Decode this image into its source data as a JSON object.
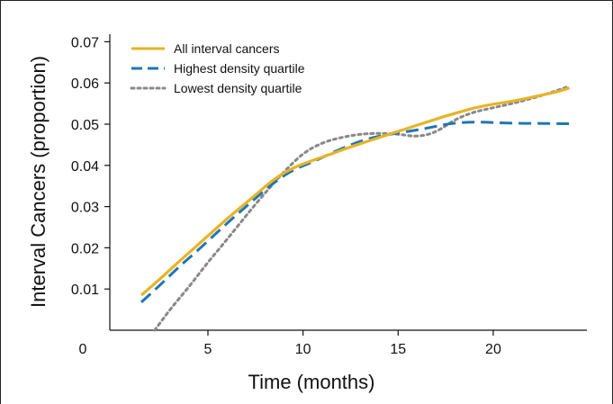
{
  "chart_data": {
    "type": "line",
    "xlabel": "Time (months)",
    "ylabel": "Interval Cancers (proportion)",
    "xlim": [
      0,
      25
    ],
    "ylim": [
      0,
      0.072
    ],
    "xticks": [
      0,
      5,
      10,
      15,
      20
    ],
    "xtick_labels": [
      "0",
      "5",
      "10",
      "15",
      "20"
    ],
    "yticks": [
      0.01,
      0.02,
      0.03,
      0.04,
      0.05,
      0.06,
      0.07
    ],
    "ytick_labels": [
      "0.01",
      "0.02",
      "0.03",
      "0.04",
      "0.05",
      "0.06",
      "0.07"
    ],
    "grid": false,
    "legend_position": "top-left",
    "series": [
      {
        "name": "All interval cancers",
        "color": "#e6b428",
        "style": "solid",
        "x": [
          1.5,
          2.5,
          3.5,
          4.5,
          5.5,
          6.5,
          7.5,
          8.5,
          9.5,
          10.5,
          11.5,
          12.5,
          13.5,
          14.5,
          15.5,
          16.5,
          17.5,
          18.5,
          19.5,
          20.5,
          21.5,
          22.5,
          23.5,
          24
        ],
        "y": [
          0.0085,
          0.0125,
          0.0168,
          0.0208,
          0.025,
          0.029,
          0.0328,
          0.0368,
          0.0395,
          0.0412,
          0.0428,
          0.0445,
          0.046,
          0.0475,
          0.049,
          0.0505,
          0.052,
          0.0533,
          0.0545,
          0.0552,
          0.056,
          0.057,
          0.058,
          0.0588
        ]
      },
      {
        "name": "Highest density quartile",
        "color": "#1f76b4",
        "style": "dashed",
        "x": [
          1.5,
          2.5,
          3.5,
          4.5,
          5.5,
          6.5,
          7.5,
          8.5,
          9.5,
          10.5,
          11.5,
          12.5,
          13.5,
          14.5,
          15.5,
          16.5,
          17.5,
          18.5,
          19.5,
          20.5,
          21.5,
          22.5,
          23.5,
          24
        ],
        "y": [
          0.0068,
          0.011,
          0.0155,
          0.0195,
          0.0238,
          0.028,
          0.032,
          0.036,
          0.039,
          0.0408,
          0.043,
          0.045,
          0.0466,
          0.0475,
          0.0482,
          0.049,
          0.05,
          0.0505,
          0.0505,
          0.0503,
          0.0502,
          0.0502,
          0.0501,
          0.0501
        ]
      },
      {
        "name": "Lowest density quartile",
        "color": "#888888",
        "style": "dotted",
        "x": [
          2.2,
          3.0,
          4.0,
          5.0,
          6.0,
          7.0,
          8.0,
          9.0,
          10.0,
          11.0,
          12.0,
          13.0,
          14.0,
          15.0,
          16.0,
          17.0,
          18.0,
          19.0,
          20.0,
          21.0,
          22.0,
          23.0,
          24.0
        ],
        "y": [
          0.0,
          0.005,
          0.0105,
          0.0165,
          0.022,
          0.0278,
          0.0333,
          0.0385,
          0.043,
          0.0455,
          0.0468,
          0.0476,
          0.0478,
          0.0476,
          0.0469,
          0.048,
          0.0512,
          0.053,
          0.054,
          0.055,
          0.0562,
          0.0576,
          0.0592
        ]
      }
    ]
  }
}
